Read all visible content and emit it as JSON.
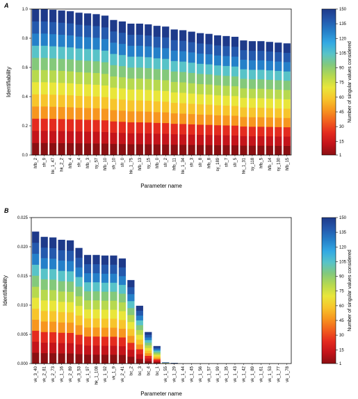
{
  "colors": {
    "ramp": [
      "#8b0f12",
      "#c4141a",
      "#e42b1f",
      "#f2601e",
      "#f7961f",
      "#f7c52b",
      "#e9e63a",
      "#b7d94e",
      "#84c97b",
      "#58c3c8",
      "#33a9e3",
      "#2580c9",
      "#2459ad",
      "#1e3a8a"
    ],
    "frame": "#000000"
  },
  "chart_data": [
    {
      "panel": "A",
      "type": "bar",
      "stacked_by": "number of singular values considered",
      "xlabel": "Parameter name",
      "ylabel": "Identifiability",
      "ylim": [
        0,
        1.0
      ],
      "yticks": [
        0,
        0.2,
        0.4,
        0.6,
        0.8,
        1.0
      ],
      "ytick_labels": [
        "0.0",
        "0.2",
        "0.4",
        "0.6",
        "0.8",
        "1.0"
      ],
      "colorbar": {
        "label": "Number of singular values considered",
        "range": [
          1,
          150
        ],
        "ticks": [
          150,
          135,
          120,
          105,
          90,
          75,
          60,
          45,
          30,
          15,
          1
        ]
      },
      "categories": [
        "hfb_2",
        "sfr_9",
        "hk_1_47",
        "hk_2_2",
        "hfb_4",
        "sfr_4",
        "hfb_3",
        "sy_57",
        "hfb_10",
        "sfr_10",
        "sfr_0",
        "hk_1_75",
        "hfb_13",
        "sy_15",
        "hfb_0",
        "sfr_2",
        "hfb_11",
        "hk_1_34",
        "sfr_3",
        "sfr_8",
        "hfb_8",
        "sy_189",
        "sfr_7",
        "sfr_5",
        "hk_1_31",
        "sy_118",
        "hfb_5",
        "hfb_14",
        "sy_130",
        "hfb_15"
      ],
      "values": [
        1.0,
        1.0,
        0.995,
        0.99,
        0.985,
        0.975,
        0.97,
        0.965,
        0.955,
        0.925,
        0.915,
        0.9,
        0.9,
        0.895,
        0.885,
        0.88,
        0.86,
        0.855,
        0.845,
        0.835,
        0.83,
        0.82,
        0.815,
        0.81,
        0.785,
        0.78,
        0.78,
        0.775,
        0.77,
        0.765
      ]
    },
    {
      "panel": "B",
      "type": "bar",
      "stacked_by": "number of singular values considered",
      "xlabel": "Parameter name",
      "ylabel": "Identifiability",
      "ylim": [
        0,
        0.025
      ],
      "yticks": [
        0,
        0.005,
        0.01,
        0.015,
        0.02,
        0.025
      ],
      "ytick_labels": [
        "0.000",
        "0.005",
        "0.010",
        "0.015",
        "0.020",
        "0.025"
      ],
      "colorbar": {
        "label": "Number of singular values considered",
        "range": [
          1,
          150
        ],
        "ticks": [
          150,
          135,
          120,
          105,
          90,
          75,
          60,
          45,
          30,
          15,
          1
        ]
      },
      "categories": [
        "vk_3_40",
        "vk_2_81",
        "vk_2_73",
        "vk_1_16",
        "vk_2_89",
        "vk_3_53",
        "vk_1_97",
        "hk_1_108",
        "vk_1_92",
        "vk_1_9",
        "vk_2_41",
        "bc_2",
        "bc_3",
        "bc_4",
        "bc_1",
        "vk_1_55",
        "vk_1_29",
        "vk_1_44",
        "vk_1_45",
        "vk_1_56",
        "vk_1_57",
        "vk_1_99",
        "vk_1_35",
        "vk_1_43",
        "vk_1_42",
        "vk_1_89",
        "vk_1_61",
        "vk_1_53",
        "vk_1_77",
        "vk_1_78"
      ],
      "values": [
        0.0226,
        0.0217,
        0.0216,
        0.0212,
        0.0211,
        0.0198,
        0.0186,
        0.0186,
        0.0185,
        0.0185,
        0.018,
        0.0143,
        0.0099,
        0.0054,
        0.003,
        0.0002,
        0.0001,
        0.0,
        0.0,
        0.0,
        0.0,
        0.0,
        0.0,
        0.0,
        0.0,
        0.0,
        0.0,
        0.0,
        0.0,
        0.0
      ]
    }
  ]
}
